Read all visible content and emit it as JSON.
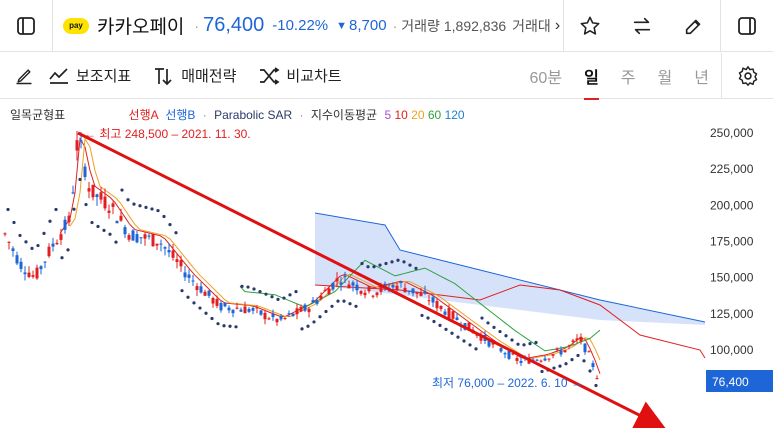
{
  "header": {
    "logo_text": "pay",
    "stock_name": "카카오페이",
    "price": "76,400",
    "change_pct": "-10.22%",
    "change_symbol": "▼",
    "change_abs": "8,700",
    "volume_label": "거래량",
    "volume_value": "1,892,836",
    "more_label": "거래대",
    "chevron": "›"
  },
  "toolbar": {
    "draw_icon": "pencil-icon",
    "indicator_label": "보조지표",
    "strategy_label": "매매전략",
    "compare_label": "비교차트",
    "periods": [
      "60분",
      "일",
      "주",
      "월",
      "년"
    ],
    "active_period": "일"
  },
  "legend": {
    "ichimoku": "일목균형표",
    "span_a": "선행A",
    "span_b": "선행B",
    "sar": "Parabolic SAR",
    "ma_label": "지수이동평균",
    "ma_periods": [
      "5",
      "10",
      "20",
      "60",
      "120"
    ],
    "ma_colors": [
      "#a64dd8",
      "#e02020",
      "#f0a020",
      "#30a040",
      "#2080d0"
    ]
  },
  "annotations": {
    "high": "← 최고 248,500 – 2021. 11. 30.",
    "low": "최저 76,000 – 2022. 6. 10 →"
  },
  "colors": {
    "up": "#e02020",
    "down": "#1e66d8",
    "cloud": "#c8d8f8",
    "sar": "#2a3a6a",
    "current_price_bg": "#1e66d8"
  },
  "chart_data": {
    "type": "candlestick",
    "y_ticks": [
      "250,000",
      "225,000",
      "200,000",
      "175,000",
      "150,000",
      "125,000",
      "100,000"
    ],
    "y_tick_values": [
      250000,
      225000,
      200000,
      175000,
      150000,
      125000,
      100000
    ],
    "current_price_label": "76,400",
    "current_price": 76400,
    "high": {
      "value": 248500,
      "date": "2021. 11. 30."
    },
    "low": {
      "value": 76000,
      "date": "2022. 6. 10"
    }
  }
}
